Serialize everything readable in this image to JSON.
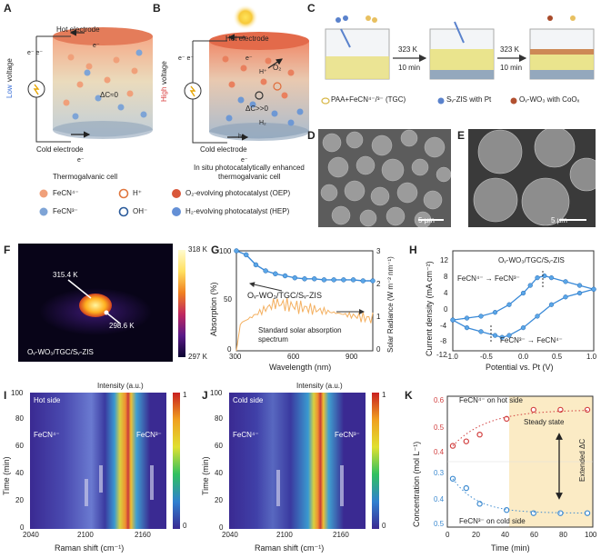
{
  "panels": {
    "A": "A",
    "B": "B",
    "C": "C",
    "D": "D",
    "E": "E",
    "F": "F",
    "G": "G",
    "H": "H",
    "I": "I",
    "J": "J",
    "K": "K"
  },
  "a": {
    "hot": "Hot electrode",
    "cold": "Cold electrode",
    "caption": "Thermogalvanic cell",
    "low": "Low",
    "voltage": "voltage",
    "dc": "ΔC≈0",
    "e1": "e⁻ e⁻",
    "e2": "e⁻",
    "e3": "e⁻"
  },
  "b": {
    "hot": "Hot electrode",
    "cold": "Cold electrode",
    "caption1": "In situ photocatalytically enhanced",
    "caption2": "thermogalvanic cell",
    "high": "High",
    "voltage": "voltage",
    "dc": "ΔC>>0",
    "o2": "O₂",
    "h": "H⁺",
    "h2": "H₂",
    "hplus": "h⁺",
    "e1": "e⁻ e⁻",
    "e2": "e⁻",
    "e3": "e⁻"
  },
  "legend": {
    "fecn4": "FeCN⁴⁻",
    "fecn3": "FeCN³⁻",
    "hplus": "H⁺",
    "oh": "OH⁻",
    "oep": "O₂-evolving photocatalyst (OEP)",
    "hep": "H₂-evolving photocatalyst (HEP)"
  },
  "c": {
    "t1": "323 K",
    "m1": "10 min",
    "t2": "323 K",
    "m2": "10 min",
    "l1": "PAA+FeCN⁴⁻/³⁻ (TGC)",
    "l2": "Sᵥ-ZIS with Pt",
    "l3": "Oᵥ-WO₃ with CoOₓ"
  },
  "d": {
    "scale": "5 μm"
  },
  "e": {
    "scale": "5 μm"
  },
  "f": {
    "hot": "315.4 K",
    "cold": "298.6 K",
    "label": "Oᵥ-WO₃/TGC/Sᵥ-ZIS",
    "max": "318 K",
    "min": "297 K"
  },
  "g": {
    "xlabel": "Wavelength (nm)",
    "ylabel": "Absorption (%)",
    "y2label": "Solar Radiance (W m⁻² nm⁻¹)",
    "curve": "Oᵥ-WO₃/TGC/Sᵥ-ZIS",
    "solar1": "Standard solar absorption",
    "solar2": "spectrum",
    "xt": [
      "300",
      "600",
      "900"
    ],
    "yt": [
      "0",
      "50",
      "100"
    ],
    "y2t": [
      "0",
      "1",
      "2",
      "3"
    ]
  },
  "h": {
    "xlabel": "Potential vs. Pt (V)",
    "ylabel": "Current density (mA cm⁻²)",
    "title": "Oᵥ-WO₃/TGC/Sᵥ-ZIS",
    "ox": "FeCN⁴⁻ → FeCN³⁻",
    "red": "FeCN³⁻ → FeCN⁴⁻",
    "xt": [
      "-1.0",
      "-0.5",
      "0.0",
      "0.5",
      "1.0"
    ],
    "yt": [
      "12",
      "8",
      "4",
      "0",
      "-4",
      "-8",
      "-12"
    ]
  },
  "i": {
    "side": "Hot side",
    "l4": "FeCN⁴⁻",
    "l3": "FeCN³⁻",
    "int": "Intensity (a.u.)",
    "xlabel": "Raman shift (cm⁻¹)",
    "ylabel": "Time (min)",
    "xt": [
      "2040",
      "2100",
      "2160"
    ],
    "yt": [
      "0",
      "20",
      "40",
      "60",
      "80",
      "100"
    ],
    "cb": [
      "1",
      "0"
    ]
  },
  "j": {
    "side": "Cold side",
    "l4": "FeCN⁴⁻",
    "l3": "FeCN³⁻",
    "int": "Intensity (a.u.)",
    "xlabel": "Raman shift (cm⁻¹)",
    "ylabel": "Time (min)",
    "xt": [
      "2040",
      "2100",
      "2160"
    ],
    "yt": [
      "0",
      "20",
      "40",
      "60",
      "80",
      "100"
    ],
    "cb": [
      "1",
      "0"
    ]
  },
  "k": {
    "xlabel": "Time (min)",
    "ylabel": "Concentration (mol L⁻¹)",
    "hot": "FeCN⁴⁻ on hot side",
    "cold": "FeCN³⁻ on cold side",
    "steady1": "Steady state",
    "ext": "Extended ΔC",
    "xt": [
      "0",
      "20",
      "40",
      "60",
      "80",
      "100"
    ],
    "ytop": [
      "0.4",
      "0.5",
      "0.6"
    ],
    "ybot": [
      "0.3",
      "0.4",
      "0.5"
    ]
  },
  "chart_data": [
    {
      "type": "line",
      "panel": "G",
      "title": "",
      "x": [
        300,
        350,
        400,
        450,
        500,
        550,
        600,
        650,
        700,
        750,
        800,
        850,
        900,
        950,
        1000
      ],
      "series": [
        {
          "name": "Oᵥ-WO₃/TGC/Sᵥ-ZIS",
          "values": [
            100,
            96,
            86,
            80,
            77,
            75,
            73,
            72,
            72,
            71,
            71,
            71,
            71,
            70,
            70
          ]
        }
      ],
      "xlabel": "Wavelength (nm)",
      "ylabel": "Absorption (%)",
      "xlim": [
        300,
        1000
      ],
      "ylim": [
        0,
        100
      ]
    },
    {
      "type": "line",
      "panel": "H",
      "title": "Oᵥ-WO₃/TGC/Sᵥ-ZIS",
      "forward": {
        "x": [
          -1.0,
          -0.8,
          -0.6,
          -0.4,
          -0.2,
          0.0,
          0.1,
          0.2,
          0.3,
          0.4,
          0.6,
          0.8,
          1.0
        ],
        "y": [
          -4,
          -3.5,
          -3,
          -2,
          0,
          3,
          5,
          7,
          7.5,
          7,
          6,
          5,
          4
        ]
      },
      "reverse": {
        "x": [
          1.0,
          0.8,
          0.6,
          0.4,
          0.2,
          0.0,
          -0.2,
          -0.3,
          -0.4,
          -0.6,
          -0.8,
          -1.0
        ],
        "y": [
          4,
          3,
          2,
          0,
          -3,
          -6,
          -8,
          -8.5,
          -8,
          -7,
          -6,
          -4
        ]
      },
      "xlabel": "Potential vs. Pt (V)",
      "ylabel": "Current density (mA cm⁻²)",
      "xlim": [
        -1,
        1
      ],
      "ylim": [
        -12,
        14
      ]
    },
    {
      "type": "scatter",
      "panel": "K",
      "series": [
        {
          "name": "FeCN⁴⁻ on hot side",
          "x": [
            0,
            10,
            20,
            40,
            60,
            80,
            100
          ],
          "values": [
            0.4,
            0.42,
            0.45,
            0.52,
            0.56,
            0.56,
            0.56
          ]
        },
        {
          "name": "FeCN³⁻ on cold side",
          "x": [
            0,
            10,
            20,
            40,
            60,
            80,
            100
          ],
          "values": [
            0.36,
            0.33,
            0.28,
            0.26,
            0.25,
            0.25,
            0.25
          ]
        }
      ],
      "xlabel": "Time (min)",
      "ylabel": "Concentration (mol L⁻¹)",
      "xlim": [
        0,
        100
      ]
    }
  ]
}
